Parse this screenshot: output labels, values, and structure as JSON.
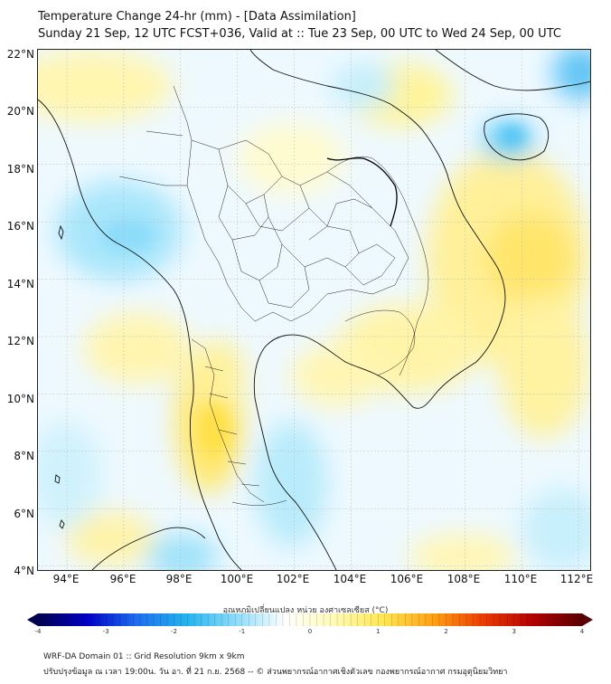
{
  "title_line1": "Temperature Change 24-hr (mm) - [Data Assimilation]",
  "title_line2": "Sunday 21 Sep, 12 UTC FCST+036, Valid at :: Tue 23 Sep, 00 UTC to Wed 24 Sep, 00 UTC",
  "lat_labels": [
    "22°N",
    "20°N",
    "18°N",
    "16°N",
    "14°N",
    "12°N",
    "10°N",
    "8°N",
    "6°N",
    "4°N"
  ],
  "lon_labels": [
    "94°E",
    "96°E",
    "98°E",
    "100°E",
    "102°E",
    "104°E",
    "106°E",
    "108°E",
    "110°E",
    "112°E"
  ],
  "colorbar": {
    "title": "อุณหภูมิเปลี่ยนแปลง หน่วย องศาเซลเซียส (°C)",
    "ticks": [
      "-4",
      "-3",
      "-2",
      "-1",
      "0",
      "1",
      "2",
      "3",
      "4"
    ],
    "min": -4,
    "max": 4,
    "colors": [
      "#00004f",
      "#0000c8",
      "#1e6ef0",
      "#23b4f0",
      "#8cdcfa",
      "#ffffff",
      "#fffab4",
      "#ffe650",
      "#ffa014",
      "#eb3c00",
      "#b40000",
      "#5a0000"
    ]
  },
  "footer_line1": "WRF-DA Domain 01 :: Grid Resolution 9km x 9km",
  "footer_line2": "ปรับปรุงข้อมูล ณ เวลา 19:00น. วัน อา. ที่ 21 ก.ย. 2568 -- © ส่วนพยากรณ์อากาศเชิงตัวเลข กองพยากรณ์อากาศ กรมอุตุนิยมวิทยา"
}
